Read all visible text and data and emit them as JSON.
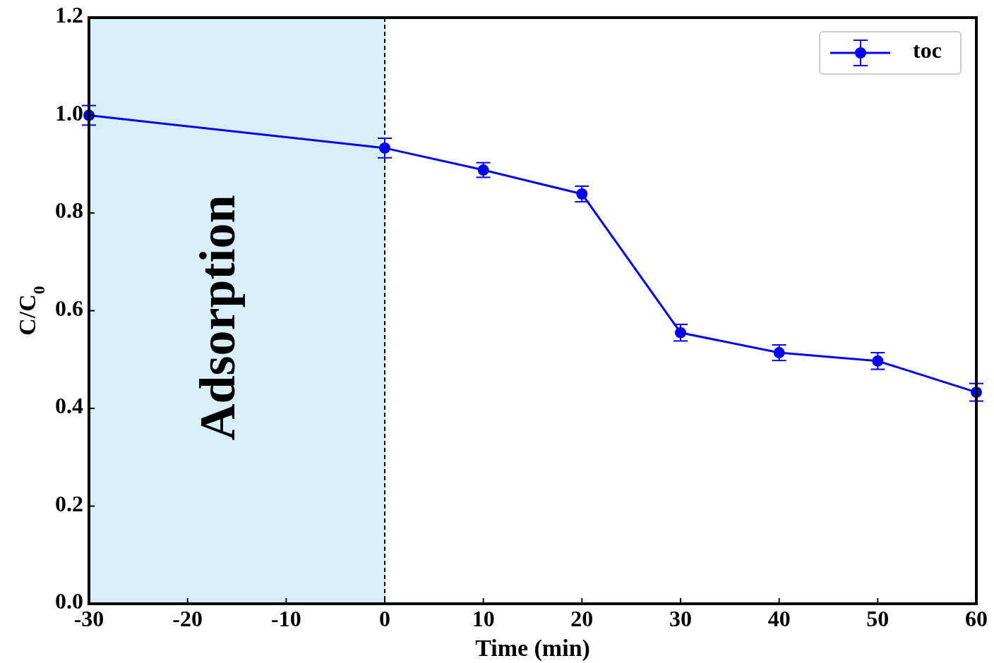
{
  "chart_data": {
    "type": "line",
    "xlabel": "Time (min)",
    "ylabel": "C/C$_{0}$",
    "x": [
      -30,
      0,
      10,
      20,
      30,
      40,
      50,
      60
    ],
    "series": [
      {
        "name": "toc",
        "color": "#0000ee",
        "values": [
          1.0,
          0.933,
          0.888,
          0.839,
          0.555,
          0.514,
          0.497,
          0.433
        ],
        "errors": [
          0.02,
          0.02,
          0.015,
          0.016,
          0.017,
          0.016,
          0.017,
          0.018
        ]
      }
    ],
    "xlim": [
      -30,
      60
    ],
    "xticks": [
      -30,
      -20,
      -10,
      0,
      10,
      20,
      30,
      40,
      50,
      60
    ],
    "ylim": [
      0,
      1.2
    ],
    "yticks": [
      {
        "value": 0,
        "label": "0.0"
      },
      0.2,
      0.4,
      0.6,
      0.8,
      {
        "value": 1,
        "label": "1.0"
      },
      1.2
    ],
    "bands": [
      {
        "axis": "x",
        "from": -30,
        "to": 0,
        "label": "Adsorption",
        "color": "#d9eff7"
      }
    ],
    "ref_lines": [
      {
        "axis": "x",
        "value": 0,
        "color": "#000000",
        "line_style": "dashed"
      }
    ],
    "marker": "circle",
    "line_style": "solid",
    "legend": "top right",
    "grid": false
  }
}
